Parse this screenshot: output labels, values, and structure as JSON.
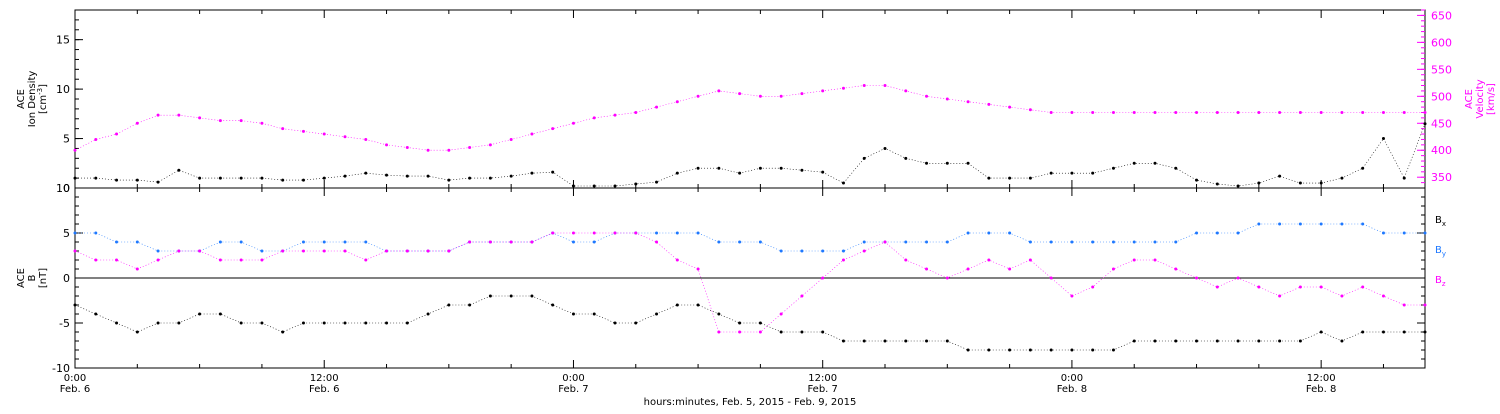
{
  "figure": {
    "xlabel": "hours:minutes, Feb.  5, 2015 - Feb.  9, 2015"
  },
  "colors": {
    "black": "#000000",
    "magenta": "#ff00ff",
    "blue": "#1e78ff"
  },
  "chart_data": [
    {
      "type": "scatter",
      "panel": "plasma",
      "ylabel": [
        "ACE",
        "Ion Density",
        "[cm^-3]"
      ],
      "ylabel_right": [
        "ACE",
        "Velocity",
        "[km/s]"
      ],
      "x_unit": "hours since 0:00 Feb. 6, 2015",
      "xlim": [
        0,
        65
      ],
      "ylim": [
        0,
        18
      ],
      "yticks": [
        0,
        5,
        10,
        15
      ],
      "ylim_right": [
        330,
        660
      ],
      "yticks_right": [
        350,
        400,
        450,
        500,
        550,
        600,
        650
      ],
      "series": [
        {
          "name": "Ion Density",
          "axis": "left",
          "color": "#000000",
          "data_end": 65,
          "x": [
            0,
            1,
            2,
            3,
            4,
            5,
            6,
            7,
            8,
            9,
            10,
            11,
            12,
            13,
            14,
            15,
            16,
            17,
            18,
            19,
            20,
            21,
            22,
            23,
            24,
            25,
            26,
            27,
            28,
            29,
            30,
            31,
            32,
            33,
            34,
            35,
            36,
            37,
            38,
            39,
            40,
            41,
            42,
            43,
            44,
            45,
            46,
            47,
            48,
            49,
            50,
            51,
            52,
            53,
            54,
            55,
            56,
            57,
            58,
            59,
            60,
            61,
            62,
            63,
            64,
            65
          ],
          "y": [
            1,
            1,
            0.8,
            0.8,
            0.6,
            1.8,
            1,
            1,
            1,
            1,
            0.8,
            0.8,
            1,
            1.2,
            1.5,
            1.3,
            1.2,
            1.2,
            0.8,
            1,
            1,
            1.2,
            1.5,
            1.6,
            0.2,
            0.2,
            0.2,
            0.4,
            0.6,
            1.5,
            2,
            2,
            1.5,
            2,
            2,
            1.8,
            1.6,
            0.5,
            3,
            4,
            3,
            2.5,
            2.5,
            2.5,
            1,
            1,
            1,
            1.5,
            1.5,
            1.5,
            2,
            2.5,
            2.5,
            2,
            0.8,
            0.4,
            0.2,
            0.5,
            1.2,
            0.5,
            0.5,
            1,
            2,
            5,
            1,
            6.5
          ]
        },
        {
          "name": "Velocity",
          "axis": "right",
          "color": "#ff00ff",
          "data_end": 65,
          "x": [
            0,
            1,
            2,
            3,
            4,
            5,
            6,
            7,
            8,
            9,
            10,
            11,
            12,
            13,
            14,
            15,
            16,
            17,
            18,
            19,
            20,
            21,
            22,
            23,
            24,
            25,
            26,
            27,
            28,
            29,
            30,
            31,
            32,
            33,
            34,
            35,
            36,
            37,
            38,
            39,
            40,
            41,
            42,
            43,
            44,
            45,
            46,
            47,
            48,
            49,
            50,
            51,
            52,
            53,
            54,
            55,
            56,
            57,
            58,
            59,
            60,
            61,
            62,
            63,
            64,
            65
          ],
          "y": [
            400,
            420,
            430,
            450,
            465,
            465,
            460,
            455,
            455,
            450,
            440,
            435,
            430,
            425,
            420,
            410,
            405,
            400,
            400,
            405,
            410,
            420,
            430,
            440,
            450,
            460,
            465,
            470,
            480,
            490,
            500,
            510,
            505,
            500,
            500,
            505,
            510,
            515,
            520,
            520,
            510,
            500,
            495,
            490,
            485,
            480,
            475,
            470,
            470,
            470,
            470,
            470,
            470,
            470,
            470,
            470,
            470,
            470,
            470,
            470,
            470,
            470,
            470,
            470,
            470,
            470
          ]
        }
      ]
    },
    {
      "type": "scatter",
      "panel": "magnetic-field",
      "ylabel": [
        "ACE",
        "B",
        "[nT]"
      ],
      "x_unit": "hours since 0:00 Feb. 6, 2015",
      "xlim": [
        0,
        65
      ],
      "ylim": [
        -10,
        10
      ],
      "yticks": [
        -10,
        -5,
        0,
        5,
        10
      ],
      "zero_line": 0,
      "legend": {
        "placement": "right",
        "labels": [
          "Bx",
          "By",
          "Bz"
        ]
      },
      "xtick_labels": [
        [
          "0:00",
          "Feb. 6"
        ],
        [
          "12:00",
          "Feb. 6"
        ],
        [
          "0:00",
          "Feb. 7"
        ],
        [
          "12:00",
          "Feb. 7"
        ],
        [
          "0:00",
          "Feb. 8"
        ],
        [
          "12:00",
          "Feb. 8"
        ],
        [
          "0:00",
          "Feb. 9"
        ]
      ],
      "xtick_values": [
        0,
        12,
        24,
        36,
        48,
        60,
        72
      ],
      "series": [
        {
          "name": "Bx",
          "color": "#000000",
          "data_end": 65,
          "x": [
            0,
            1,
            2,
            3,
            4,
            5,
            6,
            7,
            8,
            9,
            10,
            11,
            12,
            13,
            14,
            15,
            16,
            17,
            18,
            19,
            20,
            21,
            22,
            23,
            24,
            25,
            26,
            27,
            28,
            29,
            30,
            31,
            32,
            33,
            34,
            35,
            36,
            37,
            38,
            39,
            40,
            41,
            42,
            43,
            44,
            45,
            46,
            47,
            48,
            49,
            50,
            51,
            52,
            53,
            54,
            55,
            56,
            57,
            58,
            59,
            60,
            61,
            62,
            63,
            64,
            65
          ],
          "y": [
            -3,
            -4,
            -5,
            -6,
            -5,
            -5,
            -4,
            -4,
            -5,
            -5,
            -6,
            -5,
            -5,
            -5,
            -5,
            -5,
            -5,
            -4,
            -3,
            -3,
            -2,
            -2,
            -2,
            -3,
            -4,
            -4,
            -5,
            -5,
            -4,
            -3,
            -3,
            -4,
            -5,
            -5,
            -6,
            -6,
            -6,
            -7,
            -7,
            -7,
            -7,
            -7,
            -7,
            -8,
            -8,
            -8,
            -8,
            -8,
            -8,
            -8,
            -8,
            -7,
            -7,
            -7,
            -7,
            -7,
            -7,
            -7,
            -7,
            -7,
            -6,
            -7,
            -6,
            -6,
            -6,
            -6
          ]
        },
        {
          "name": "By",
          "color": "#1e78ff",
          "data_end": 65,
          "x": [
            0,
            1,
            2,
            3,
            4,
            5,
            6,
            7,
            8,
            9,
            10,
            11,
            12,
            13,
            14,
            15,
            16,
            17,
            18,
            19,
            20,
            21,
            22,
            23,
            24,
            25,
            26,
            27,
            28,
            29,
            30,
            31,
            32,
            33,
            34,
            35,
            36,
            37,
            38,
            39,
            40,
            41,
            42,
            43,
            44,
            45,
            46,
            47,
            48,
            49,
            50,
            51,
            52,
            53,
            54,
            55,
            56,
            57,
            58,
            59,
            60,
            61,
            62,
            63,
            64,
            65
          ],
          "y": [
            5,
            5,
            4,
            4,
            3,
            3,
            3,
            4,
            4,
            3,
            3,
            4,
            4,
            4,
            4,
            3,
            3,
            3,
            3,
            4,
            4,
            4,
            4,
            5,
            4,
            4,
            5,
            5,
            5,
            5,
            5,
            4,
            4,
            4,
            3,
            3,
            3,
            3,
            4,
            4,
            4,
            4,
            4,
            5,
            5,
            5,
            4,
            4,
            4,
            4,
            4,
            4,
            4,
            4,
            5,
            5,
            5,
            6,
            6,
            6,
            6,
            6,
            6,
            5,
            5,
            5
          ]
        },
        {
          "name": "Bz",
          "color": "#ff00ff",
          "data_end": 65,
          "x": [
            0,
            1,
            2,
            3,
            4,
            5,
            6,
            7,
            8,
            9,
            10,
            11,
            12,
            13,
            14,
            15,
            16,
            17,
            18,
            19,
            20,
            21,
            22,
            23,
            24,
            25,
            26,
            27,
            28,
            29,
            30,
            31,
            32,
            33,
            34,
            35,
            36,
            37,
            38,
            39,
            40,
            41,
            42,
            43,
            44,
            45,
            46,
            47,
            48,
            49,
            50,
            51,
            52,
            53,
            54,
            55,
            56,
            57,
            58,
            59,
            60,
            61,
            62,
            63,
            64,
            65
          ],
          "y": [
            3,
            2,
            2,
            1,
            2,
            3,
            3,
            2,
            2,
            2,
            3,
            3,
            3,
            3,
            2,
            3,
            3,
            3,
            3,
            4,
            4,
            4,
            4,
            5,
            5,
            5,
            5,
            5,
            4,
            2,
            1,
            -6,
            -6,
            -6,
            -4,
            -2,
            0,
            2,
            3,
            4,
            2,
            1,
            0,
            1,
            2,
            1,
            2,
            0,
            -2,
            -1,
            1,
            2,
            2,
            1,
            0,
            -1,
            0,
            -1,
            -2,
            -1,
            -1,
            -2,
            -1,
            -2,
            -3,
            -3
          ]
        }
      ]
    }
  ]
}
